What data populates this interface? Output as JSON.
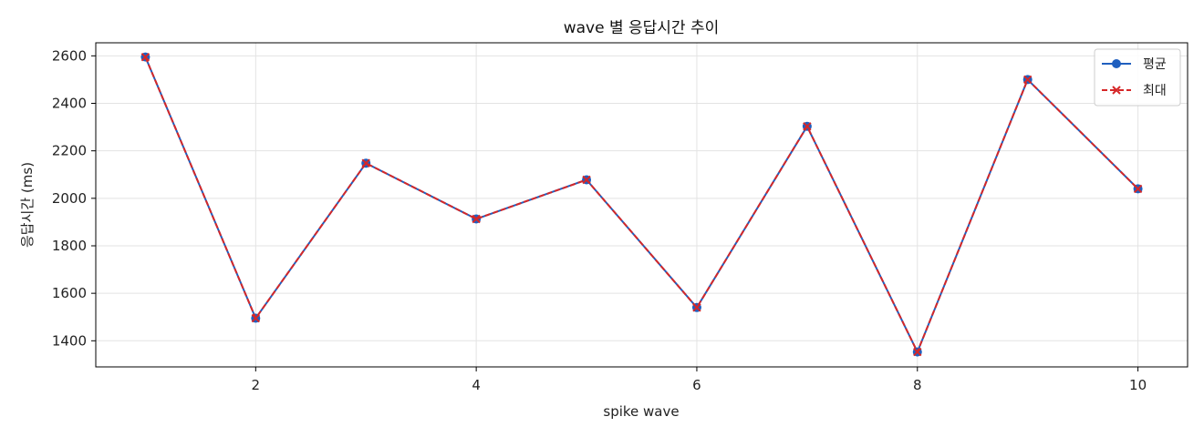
{
  "chart_data": {
    "type": "line",
    "title": "wave 별 응답시간 추이",
    "xlabel": "spike wave",
    "ylabel": "응답시간 (ms)",
    "x": [
      1,
      2,
      3,
      4,
      5,
      6,
      7,
      8,
      9,
      10
    ],
    "xlim": [
      0.55,
      10.45
    ],
    "ylim": [
      1290,
      2655
    ],
    "xticks": [
      2,
      4,
      6,
      8,
      10
    ],
    "yticks": [
      1400,
      1600,
      1800,
      2000,
      2200,
      2400,
      2600
    ],
    "grid": true,
    "legend_position": "top-right",
    "series": [
      {
        "name": "평균",
        "color": "#1f5fbf",
        "line_style": "solid",
        "marker": "circle",
        "values": [
          2595,
          1495,
          2148,
          1913,
          2078,
          1540,
          2303,
          1353,
          2500,
          2040
        ]
      },
      {
        "name": "최대",
        "color": "#d62728",
        "line_style": "dashed",
        "marker": "x",
        "values": [
          2595,
          1495,
          2148,
          1913,
          2078,
          1540,
          2303,
          1353,
          2500,
          2040
        ]
      }
    ]
  }
}
